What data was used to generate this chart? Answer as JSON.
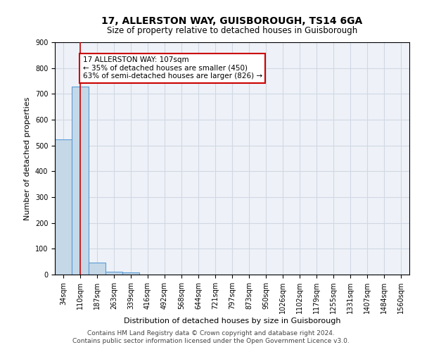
{
  "title": "17, ALLERSTON WAY, GUISBOROUGH, TS14 6GA",
  "subtitle": "Size of property relative to detached houses in Guisborough",
  "xlabel": "Distribution of detached houses by size in Guisborough",
  "ylabel": "Number of detached properties",
  "footer1": "Contains HM Land Registry data © Crown copyright and database right 2024.",
  "footer2": "Contains public sector information licensed under the Open Government Licence v3.0.",
  "bar_labels": [
    "34sqm",
    "110sqm",
    "187sqm",
    "263sqm",
    "339sqm",
    "416sqm",
    "492sqm",
    "568sqm",
    "644sqm",
    "721sqm",
    "797sqm",
    "873sqm",
    "950sqm",
    "1026sqm",
    "1102sqm",
    "1179sqm",
    "1255sqm",
    "1331sqm",
    "1407sqm",
    "1484sqm",
    "1560sqm"
  ],
  "bar_values": [
    525,
    728,
    47,
    12,
    7,
    0,
    0,
    0,
    0,
    0,
    0,
    0,
    0,
    0,
    0,
    0,
    0,
    0,
    0,
    0,
    0
  ],
  "bar_color": "#c5d8e8",
  "bar_edge_color": "#5b9bd5",
  "grid_color": "#d0d8e4",
  "background_color": "#eef2f8",
  "property_line_x": 1.0,
  "annotation_text": "17 ALLERSTON WAY: 107sqm\n← 35% of detached houses are smaller (450)\n63% of semi-detached houses are larger (826) →",
  "annotation_box_color": "#ffffff",
  "annotation_box_edge": "#cc0000",
  "property_line_color": "#cc0000",
  "ylim": [
    0,
    900
  ],
  "yticks": [
    0,
    100,
    200,
    300,
    400,
    500,
    600,
    700,
    800,
    900
  ]
}
